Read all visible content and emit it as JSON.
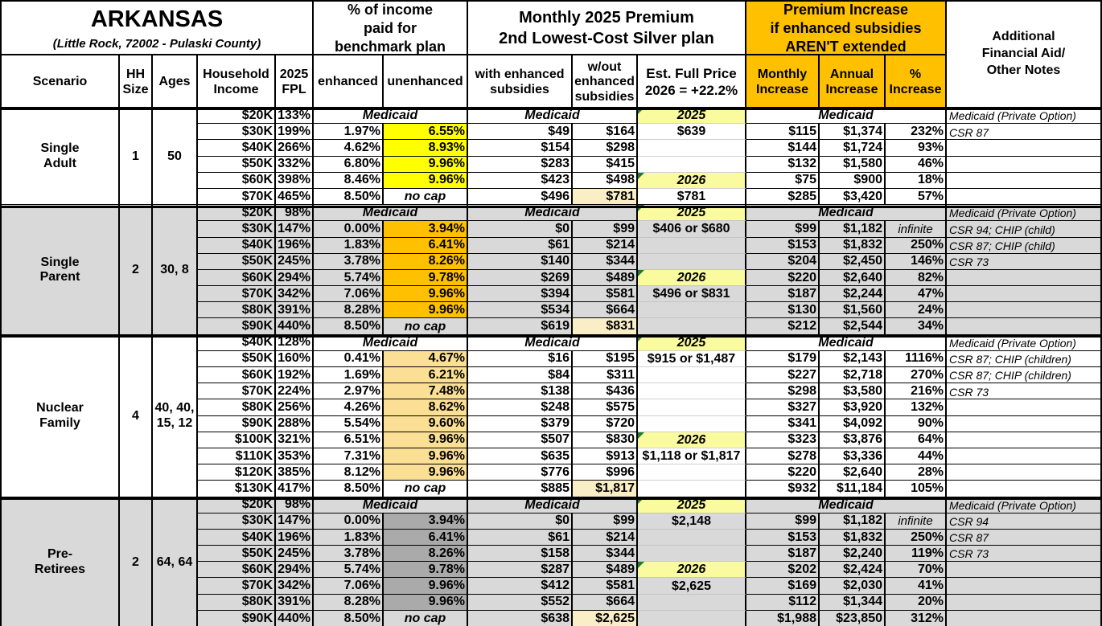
{
  "title": {
    "main": "ARKANSAS",
    "subtitle": "(Little Rock, 72002 - Pulaski County)"
  },
  "header": {
    "pct_income_block": "% of income\npaid for\nbenchmark plan",
    "premium_block": "Monthly 2025 Premium\n2nd Lowest-Cost Silver plan",
    "increase_block": "Premium Increase\nif enhanced subsidies\nAREN'T extended",
    "notes_block": "Additional\nFinancial Aid/\nOther Notes",
    "cols": {
      "scenario": "Scenario",
      "hh": "HH\nSize",
      "ages": "Ages",
      "income": "Household\nIncome",
      "fpl": "2025\nFPL",
      "enhanced": "enhanced",
      "unenhanced": "unenhanced",
      "with_sub": "with enhanced\nsubsidies",
      "without_sub": "w/out\nenhanced\nsubsidies",
      "full_price": "Est. Full Price\n2026 = +22.2%",
      "monthly": "Monthly\nIncrease",
      "annual": "Annual\nIncrease",
      "pct": "%\nIncrease"
    }
  },
  "colors": {
    "header_orange": "#ffc000",
    "row_gray": "#d9d9d9",
    "pale_yellow": "#fafa9e",
    "cream_highlight": "#faeec6",
    "green_flag": "#1e7b34",
    "group_highlights": [
      "#ffff00",
      "#ffc000",
      "#fbdf94",
      "#aaaaaa"
    ]
  },
  "chart_data": {
    "type": "table",
    "title": "ARKANSAS (Little Rock, 72002 - Pulaski County)",
    "groups": [
      {
        "scenario": "Single\nAdult",
        "hh_size": "1",
        "ages": "50",
        "shaded": false,
        "highlight_color": "#ffff00",
        "rows": [
          {
            "medicaid": true,
            "income": "$20K",
            "fpl": "133%",
            "pct_income": "Medicaid",
            "premium": "Medicaid",
            "full_price": "2025",
            "full_kind": "year",
            "increase": "Medicaid",
            "note": "Medicaid (Private Option)"
          },
          {
            "income": "$30K",
            "fpl": "199%",
            "enhanced": "1.97%",
            "unenhanced": "6.55%",
            "unenhanced_hl": true,
            "with_sub": "$49",
            "without_sub": "$164",
            "full_price": "$639",
            "full_kind": "value",
            "monthly": "$115",
            "annual": "$1,374",
            "pct": "232%",
            "note": "CSR 87"
          },
          {
            "income": "$40K",
            "fpl": "266%",
            "enhanced": "4.62%",
            "unenhanced": "8.93%",
            "unenhanced_hl": true,
            "with_sub": "$154",
            "without_sub": "$298",
            "full_price": "",
            "full_kind": "none",
            "monthly": "$144",
            "annual": "$1,724",
            "pct": "93%",
            "note": ""
          },
          {
            "income": "$50K",
            "fpl": "332%",
            "enhanced": "6.80%",
            "unenhanced": "9.96%",
            "unenhanced_hl": true,
            "with_sub": "$283",
            "without_sub": "$415",
            "full_price": "",
            "full_kind": "none",
            "monthly": "$132",
            "annual": "$1,580",
            "pct": "46%",
            "note": ""
          },
          {
            "income": "$60K",
            "fpl": "398%",
            "enhanced": "8.46%",
            "unenhanced": "9.96%",
            "unenhanced_hl": true,
            "with_sub": "$423",
            "without_sub": "$498",
            "full_price": "2026",
            "full_kind": "year",
            "monthly": "$75",
            "annual": "$900",
            "pct": "18%",
            "note": ""
          },
          {
            "income": "$70K",
            "fpl": "465%",
            "enhanced": "8.50%",
            "unenhanced": "no cap",
            "unenhanced_nocap": true,
            "with_sub": "$496",
            "without_sub": "$781",
            "without_sub_hl": true,
            "full_price": "$781",
            "full_kind": "value",
            "monthly": "$285",
            "annual": "$3,420",
            "pct": "57%",
            "note": ""
          }
        ]
      },
      {
        "scenario": "Single\nParent",
        "hh_size": "2",
        "ages": "30, 8",
        "shaded": true,
        "highlight_color": "#ffc000",
        "rows": [
          {
            "medicaid": true,
            "income": "$20K",
            "fpl": "98%",
            "pct_income": "Medicaid",
            "premium": "Medicaid",
            "full_price": "2025",
            "full_kind": "year",
            "increase": "Medicaid",
            "note": "Medicaid (Private Option)"
          },
          {
            "income": "$30K",
            "fpl": "147%",
            "enhanced": "0.00%",
            "unenhanced": "3.94%",
            "unenhanced_hl": true,
            "with_sub": "$0",
            "without_sub": "$99",
            "full_price": "$406 or $680",
            "full_kind": "value",
            "monthly": "$99",
            "annual": "$1,182",
            "pct": "infinite",
            "pct_italic": true,
            "note": "CSR 94; CHIP (child)"
          },
          {
            "income": "$40K",
            "fpl": "196%",
            "enhanced": "1.83%",
            "unenhanced": "6.41%",
            "unenhanced_hl": true,
            "with_sub": "$61",
            "without_sub": "$214",
            "full_price": "",
            "full_kind": "none",
            "monthly": "$153",
            "annual": "$1,832",
            "pct": "250%",
            "note": "CSR 87; CHIP (child)"
          },
          {
            "income": "$50K",
            "fpl": "245%",
            "enhanced": "3.78%",
            "unenhanced": "8.26%",
            "unenhanced_hl": true,
            "with_sub": "$140",
            "without_sub": "$344",
            "full_price": "",
            "full_kind": "none",
            "monthly": "$204",
            "annual": "$2,450",
            "pct": "146%",
            "note": "CSR 73"
          },
          {
            "income": "$60K",
            "fpl": "294%",
            "enhanced": "5.74%",
            "unenhanced": "9.78%",
            "unenhanced_hl": true,
            "with_sub": "$269",
            "without_sub": "$489",
            "full_price": "2026",
            "full_kind": "year",
            "monthly": "$220",
            "annual": "$2,640",
            "pct": "82%",
            "note": ""
          },
          {
            "income": "$70K",
            "fpl": "342%",
            "enhanced": "7.06%",
            "unenhanced": "9.96%",
            "unenhanced_hl": true,
            "with_sub": "$394",
            "without_sub": "$581",
            "full_price": "$496 or $831",
            "full_kind": "value",
            "monthly": "$187",
            "annual": "$2,244",
            "pct": "47%",
            "note": ""
          },
          {
            "income": "$80K",
            "fpl": "391%",
            "enhanced": "8.28%",
            "unenhanced": "9.96%",
            "unenhanced_hl": true,
            "with_sub": "$534",
            "without_sub": "$664",
            "full_price": "",
            "full_kind": "none",
            "monthly": "$130",
            "annual": "$1,560",
            "pct": "24%",
            "note": ""
          },
          {
            "income": "$90K",
            "fpl": "440%",
            "enhanced": "8.50%",
            "unenhanced": "no cap",
            "unenhanced_nocap": true,
            "with_sub": "$619",
            "without_sub": "$831",
            "without_sub_hl": true,
            "full_price": "",
            "full_kind": "none",
            "monthly": "$212",
            "annual": "$2,544",
            "pct": "34%",
            "note": ""
          }
        ]
      },
      {
        "scenario": "Nuclear\nFamily",
        "hh_size": "4",
        "ages": "40, 40,\n15, 12",
        "shaded": false,
        "highlight_color": "#fbdf94",
        "rows": [
          {
            "medicaid": true,
            "income": "$40K",
            "fpl": "128%",
            "pct_income": "Medicaid",
            "premium": "Medicaid",
            "full_price": "2025",
            "full_kind": "year",
            "increase": "Medicaid",
            "note": "Medicaid (Private Option)"
          },
          {
            "income": "$50K",
            "fpl": "160%",
            "enhanced": "0.41%",
            "unenhanced": "4.67%",
            "unenhanced_hl": true,
            "with_sub": "$16",
            "without_sub": "$195",
            "full_price": "$915 or $1,487",
            "full_kind": "value",
            "monthly": "$179",
            "annual": "$2,143",
            "pct": "1116%",
            "note": "CSR 87; CHIP (children)"
          },
          {
            "income": "$60K",
            "fpl": "192%",
            "enhanced": "1.69%",
            "unenhanced": "6.21%",
            "unenhanced_hl": true,
            "with_sub": "$84",
            "without_sub": "$311",
            "full_price": "",
            "full_kind": "none",
            "monthly": "$227",
            "annual": "$2,718",
            "pct": "270%",
            "note": "CSR 87; CHIP (children)"
          },
          {
            "income": "$70K",
            "fpl": "224%",
            "enhanced": "2.97%",
            "unenhanced": "7.48%",
            "unenhanced_hl": true,
            "with_sub": "$138",
            "without_sub": "$436",
            "full_price": "",
            "full_kind": "none",
            "monthly": "$298",
            "annual": "$3,580",
            "pct": "216%",
            "note": "CSR 73"
          },
          {
            "income": "$80K",
            "fpl": "256%",
            "enhanced": "4.26%",
            "unenhanced": "8.62%",
            "unenhanced_hl": true,
            "with_sub": "$248",
            "without_sub": "$575",
            "full_price": "",
            "full_kind": "none",
            "monthly": "$327",
            "annual": "$3,920",
            "pct": "132%",
            "note": ""
          },
          {
            "income": "$90K",
            "fpl": "288%",
            "enhanced": "5.54%",
            "unenhanced": "9.60%",
            "unenhanced_hl": true,
            "with_sub": "$379",
            "without_sub": "$720",
            "full_price": "",
            "full_kind": "none",
            "monthly": "$341",
            "annual": "$4,092",
            "pct": "90%",
            "note": ""
          },
          {
            "income": "$100K",
            "fpl": "321%",
            "enhanced": "6.51%",
            "unenhanced": "9.96%",
            "unenhanced_hl": true,
            "with_sub": "$507",
            "without_sub": "$830",
            "full_price": "2026",
            "full_kind": "year",
            "monthly": "$323",
            "annual": "$3,876",
            "pct": "64%",
            "note": ""
          },
          {
            "income": "$110K",
            "fpl": "353%",
            "enhanced": "7.31%",
            "unenhanced": "9.96%",
            "unenhanced_hl": true,
            "with_sub": "$635",
            "without_sub": "$913",
            "full_price": "$1,118 or $1,817",
            "full_kind": "value",
            "monthly": "$278",
            "annual": "$3,336",
            "pct": "44%",
            "note": ""
          },
          {
            "income": "$120K",
            "fpl": "385%",
            "enhanced": "8.12%",
            "unenhanced": "9.96%",
            "unenhanced_hl": true,
            "with_sub": "$776",
            "without_sub": "$996",
            "full_price": "",
            "full_kind": "none",
            "monthly": "$220",
            "annual": "$2,640",
            "pct": "28%",
            "note": ""
          },
          {
            "income": "$130K",
            "fpl": "417%",
            "enhanced": "8.50%",
            "unenhanced": "no cap",
            "unenhanced_nocap": true,
            "with_sub": "$885",
            "without_sub": "$1,817",
            "without_sub_hl": true,
            "full_price": "",
            "full_kind": "none",
            "monthly": "$932",
            "annual": "$11,184",
            "pct": "105%",
            "note": ""
          }
        ]
      },
      {
        "scenario": "Pre-\nRetirees",
        "hh_size": "2",
        "ages": "64, 64",
        "shaded": true,
        "highlight_color": "#aaaaaa",
        "rows": [
          {
            "medicaid": true,
            "income": "$20K",
            "fpl": "98%",
            "pct_income": "Medicaid",
            "premium": "Medicaid",
            "full_price": "2025",
            "full_kind": "year",
            "increase": "Medicaid",
            "note": "Medicaid (Private Option)"
          },
          {
            "income": "$30K",
            "fpl": "147%",
            "enhanced": "0.00%",
            "unenhanced": "3.94%",
            "unenhanced_hl": true,
            "with_sub": "$0",
            "without_sub": "$99",
            "full_price": "$2,148",
            "full_kind": "value",
            "monthly": "$99",
            "annual": "$1,182",
            "pct": "infinite",
            "pct_italic": true,
            "note": "CSR 94"
          },
          {
            "income": "$40K",
            "fpl": "196%",
            "enhanced": "1.83%",
            "unenhanced": "6.41%",
            "unenhanced_hl": true,
            "with_sub": "$61",
            "without_sub": "$214",
            "full_price": "",
            "full_kind": "none",
            "monthly": "$153",
            "annual": "$1,832",
            "pct": "250%",
            "note": "CSR 87"
          },
          {
            "income": "$50K",
            "fpl": "245%",
            "enhanced": "3.78%",
            "unenhanced": "8.26%",
            "unenhanced_hl": true,
            "with_sub": "$158",
            "without_sub": "$344",
            "full_price": "",
            "full_kind": "none",
            "monthly": "$187",
            "annual": "$2,240",
            "pct": "119%",
            "note": "CSR 73"
          },
          {
            "income": "$60K",
            "fpl": "294%",
            "enhanced": "5.74%",
            "unenhanced": "9.78%",
            "unenhanced_hl": true,
            "with_sub": "$287",
            "without_sub": "$489",
            "full_price": "2026",
            "full_kind": "year",
            "monthly": "$202",
            "annual": "$2,424",
            "pct": "70%",
            "note": ""
          },
          {
            "income": "$70K",
            "fpl": "342%",
            "enhanced": "7.06%",
            "unenhanced": "9.96%",
            "unenhanced_hl": true,
            "with_sub": "$412",
            "without_sub": "$581",
            "full_price": "$2,625",
            "full_kind": "value",
            "monthly": "$169",
            "annual": "$2,030",
            "pct": "41%",
            "note": ""
          },
          {
            "income": "$80K",
            "fpl": "391%",
            "enhanced": "8.28%",
            "unenhanced": "9.96%",
            "unenhanced_hl": true,
            "with_sub": "$552",
            "without_sub": "$664",
            "full_price": "",
            "full_kind": "none",
            "monthly": "$112",
            "annual": "$1,344",
            "pct": "20%",
            "note": ""
          },
          {
            "income": "$90K",
            "fpl": "440%",
            "enhanced": "8.50%",
            "unenhanced": "no cap",
            "unenhanced_nocap": true,
            "with_sub": "$638",
            "without_sub": "$2,625",
            "without_sub_hl": true,
            "full_price": "",
            "full_kind": "none",
            "monthly": "$1,988",
            "annual": "$23,850",
            "pct": "312%",
            "note": ""
          }
        ]
      }
    ]
  }
}
